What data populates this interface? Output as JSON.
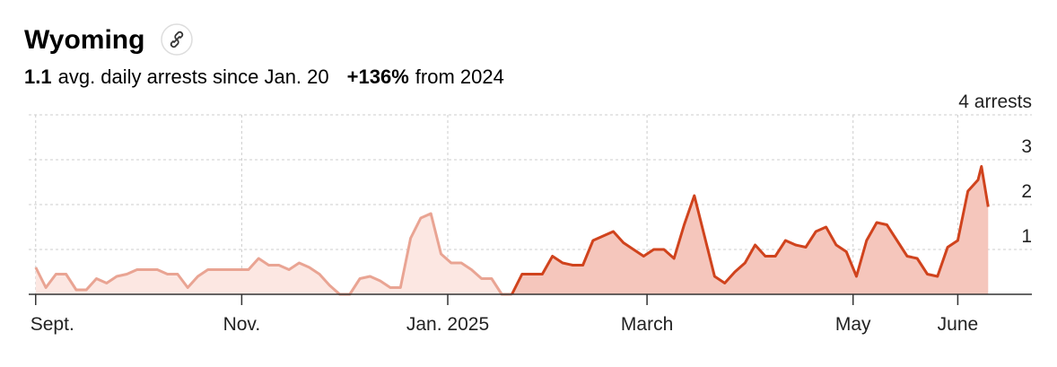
{
  "chart_data": {
    "type": "area",
    "title": "Wyoming",
    "stat1_value": "1.1",
    "stat1_text": "avg. daily arrests since Jan. 20",
    "stat2_value": "+136%",
    "stat2_text": "from 2024",
    "xlim": [
      -1,
      296
    ],
    "ylim": [
      0,
      4
    ],
    "xticks": [
      {
        "value": 0,
        "label": "Sept."
      },
      {
        "value": 61,
        "label": "Nov."
      },
      {
        "value": 122,
        "label": "Jan. 2025"
      },
      {
        "value": 181,
        "label": "March"
      },
      {
        "value": 242,
        "label": "May"
      },
      {
        "value": 273,
        "label": "June"
      }
    ],
    "yticks": [
      1,
      2,
      3,
      {
        "value": 4,
        "label": "4 arrests"
      }
    ],
    "grid": true,
    "series": [
      {
        "color": "#e9a493",
        "fill": "#fce7e2",
        "x": [
          0,
          3,
          6,
          9,
          12,
          15,
          18,
          21,
          24,
          27,
          30,
          33,
          36,
          39,
          42,
          45,
          48,
          51,
          54,
          57,
          60,
          63,
          66,
          69,
          72,
          75,
          78,
          81,
          84,
          87,
          90,
          93,
          96,
          99,
          102,
          105,
          108,
          111,
          114,
          117,
          120,
          123,
          126,
          129,
          132,
          135,
          138,
          141
        ],
        "values": [
          0.6,
          0.15,
          0.45,
          0.45,
          0.1,
          0.1,
          0.35,
          0.25,
          0.4,
          0.45,
          0.55,
          0.55,
          0.55,
          0.45,
          0.45,
          0.15,
          0.4,
          0.55,
          0.55,
          0.55,
          0.55,
          0.55,
          0.8,
          0.65,
          0.65,
          0.55,
          0.7,
          0.6,
          0.45,
          0.2,
          0,
          0,
          0.35,
          0.4,
          0.3,
          0.15,
          0.15,
          1.25,
          1.7,
          1.8,
          0.9,
          0.7,
          0.7,
          0.55,
          0.35,
          0.35,
          0,
          0
        ]
      },
      {
        "color": "#d0431d",
        "fill": "#f5c6bc",
        "x": [
          141,
          144,
          147,
          150,
          153,
          156,
          159,
          162,
          165,
          168,
          171,
          174,
          177,
          180,
          183,
          186,
          189,
          192,
          195,
          198,
          201,
          204,
          207,
          210,
          213,
          216,
          219,
          222,
          225,
          228,
          231,
          234,
          237,
          240,
          243,
          246,
          249,
          252,
          255,
          258,
          261,
          264,
          267,
          270,
          273,
          276,
          279,
          280,
          282
        ],
        "values": [
          0,
          0.45,
          0.45,
          0.45,
          0.85,
          0.7,
          0.65,
          0.65,
          1.2,
          1.3,
          1.4,
          1.15,
          1.0,
          0.85,
          1.0,
          1.0,
          0.8,
          1.55,
          2.2,
          1.3,
          0.4,
          0.25,
          0.5,
          0.7,
          1.1,
          0.85,
          0.85,
          1.2,
          1.1,
          1.05,
          1.4,
          1.5,
          1.1,
          0.95,
          0.4,
          1.2,
          1.6,
          1.55,
          1.2,
          0.85,
          0.8,
          0.45,
          0.4,
          1.05,
          1.2,
          2.3,
          2.55,
          2.85,
          1.95
        ]
      }
    ]
  }
}
